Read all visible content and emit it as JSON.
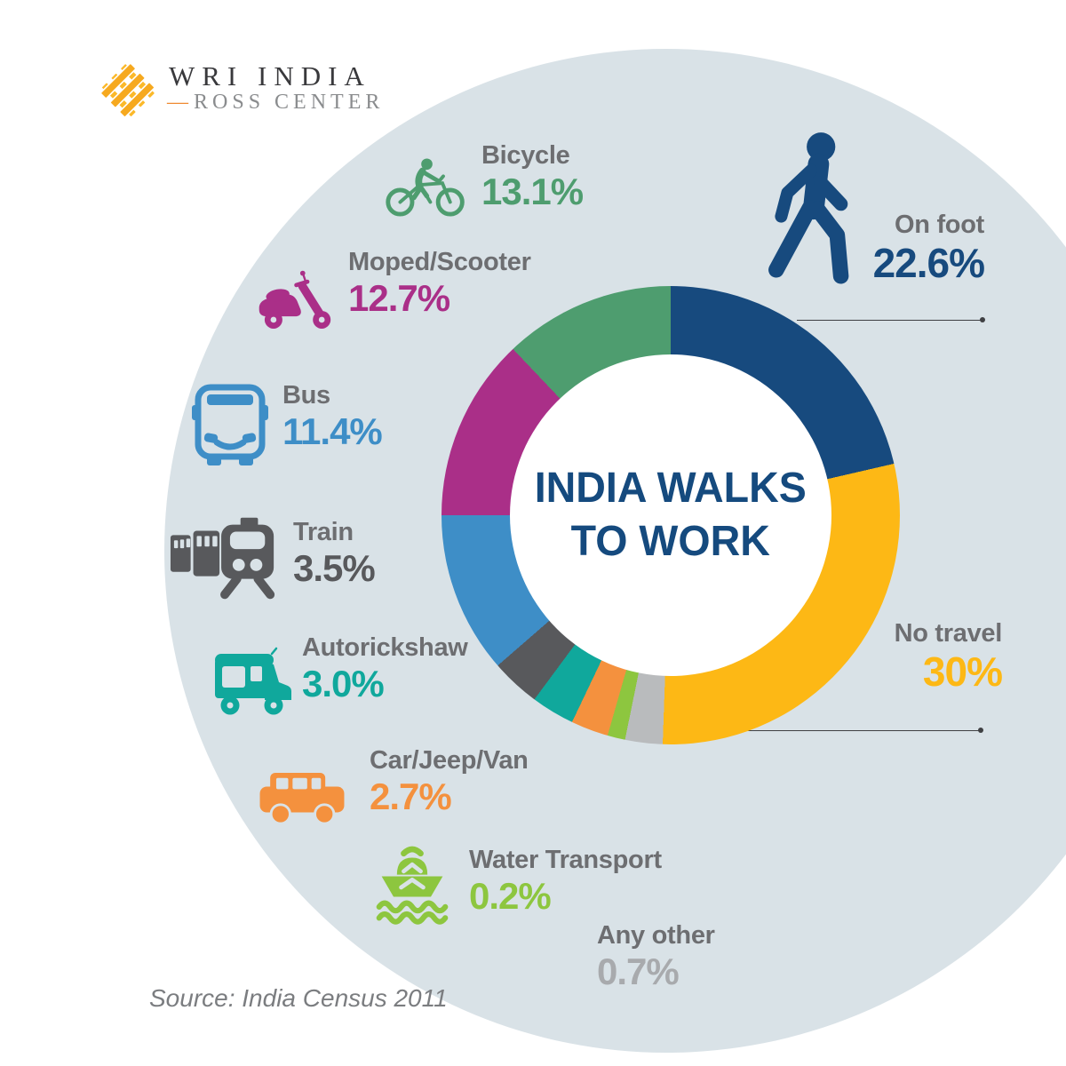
{
  "logo": {
    "org": "WRI INDIA",
    "dash": "—",
    "sub": "ROSS CENTER",
    "weave_color_a": "#f6a91f",
    "weave_color_b": "#fbb92a"
  },
  "title": {
    "line1": "INDIA WALKS",
    "line2": "TO WORK"
  },
  "source": "Source: India Census 2011",
  "colors": {
    "background_circle": "#d9e2e7",
    "label_gray": "#6d6e71",
    "title_blue": "#154a7e",
    "leader_line": "#3f4043",
    "source_gray": "#7b7d80"
  },
  "chart_data": {
    "type": "pie",
    "subtype": "donut",
    "title": "INDIA WALKS TO WORK",
    "unit": "%",
    "source": "India Census 2011",
    "legend_position": "around",
    "order": "clockwise from 12 o'clock",
    "slices": [
      {
        "label": "On foot",
        "value": "22.6%",
        "pct": 22.6,
        "color": "#174a7e",
        "display_deg": 77
      },
      {
        "label": "No travel",
        "value": "30%",
        "pct": 30.0,
        "color": "#fdb815",
        "display_deg": 105
      },
      {
        "label": "Any other",
        "value": "0.7%",
        "pct": 0.7,
        "color": "#b9bbbd",
        "display_deg": 9.5
      },
      {
        "label": "Water Transport",
        "value": "0.2%",
        "pct": 0.2,
        "color": "#8dc63f",
        "display_deg": 4.5
      },
      {
        "label": "Car/Jeep/Van",
        "value": "2.7%",
        "pct": 2.7,
        "color": "#f4913e",
        "display_deg": 9.5
      },
      {
        "label": "Autorickshaw",
        "value": "3.0%",
        "pct": 3.0,
        "color": "#10a89c",
        "display_deg": 11
      },
      {
        "label": "Train",
        "value": "3.5%",
        "pct": 3.5,
        "color": "#58595c",
        "display_deg": 12.5
      },
      {
        "label": "Bus",
        "value": "11.4%",
        "pct": 11.4,
        "color": "#3e8ec7",
        "display_deg": 41
      },
      {
        "label": "Moped/Scooter",
        "value": "12.7%",
        "pct": 12.7,
        "color": "#aa2f88",
        "display_deg": 46.5
      },
      {
        "label": "Bicycle",
        "value": "13.1%",
        "pct": 13.1,
        "color": "#4e9d6f",
        "display_deg": 43.5
      }
    ],
    "any_other_value_color": "#a8aaad"
  }
}
